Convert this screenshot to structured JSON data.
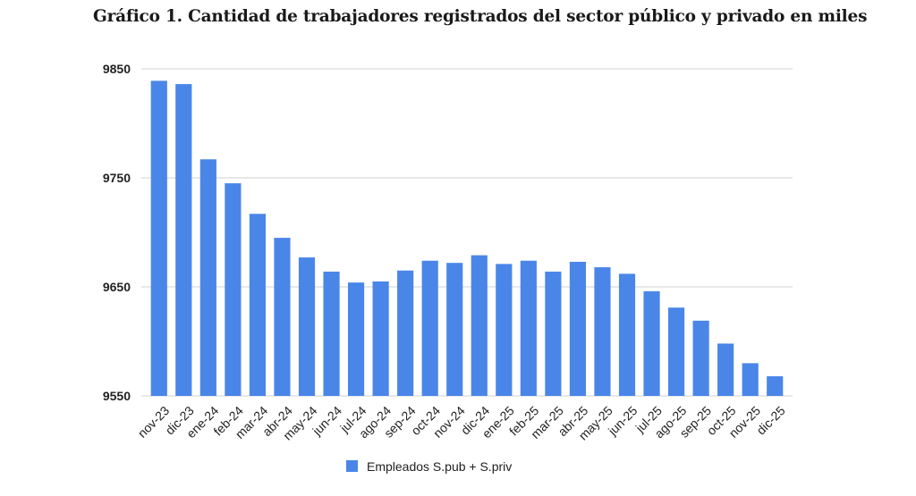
{
  "chart_data": {
    "type": "bar",
    "title": "Gráfico 1. Cantidad de trabajadores registrados del sector público y privado en miles",
    "xlabel": "",
    "ylabel": "",
    "ylim": [
      9550,
      9850
    ],
    "yticks": [
      9550,
      9650,
      9750,
      9850
    ],
    "grid": true,
    "legend_position": "bottom",
    "color": "#4a86e8",
    "categories": [
      "nov-23",
      "dic-23",
      "ene-24",
      "feb-24",
      "mar-24",
      "abr-24",
      "may-24",
      "jun-24",
      "jul-24",
      "ago-24",
      "sep-24",
      "oct-24",
      "nov-24",
      "dic-24",
      "ene-25",
      "feb-25",
      "mar-25",
      "abr-25",
      "may-25",
      "jun-25",
      "jul-25",
      "ago-25",
      "sep-25",
      "oct-25",
      "nov-25",
      "dic-25"
    ],
    "series": [
      {
        "name": "Empleados S.pub + S.priv",
        "values": [
          9839,
          9836,
          9767,
          9745,
          9717,
          9695,
          9677,
          9664,
          9654,
          9655,
          9665,
          9674,
          9672,
          9679,
          9671,
          9674,
          9664,
          9673,
          9668,
          9662,
          9646,
          9631,
          9619,
          9598,
          9580,
          9568
        ]
      }
    ]
  }
}
